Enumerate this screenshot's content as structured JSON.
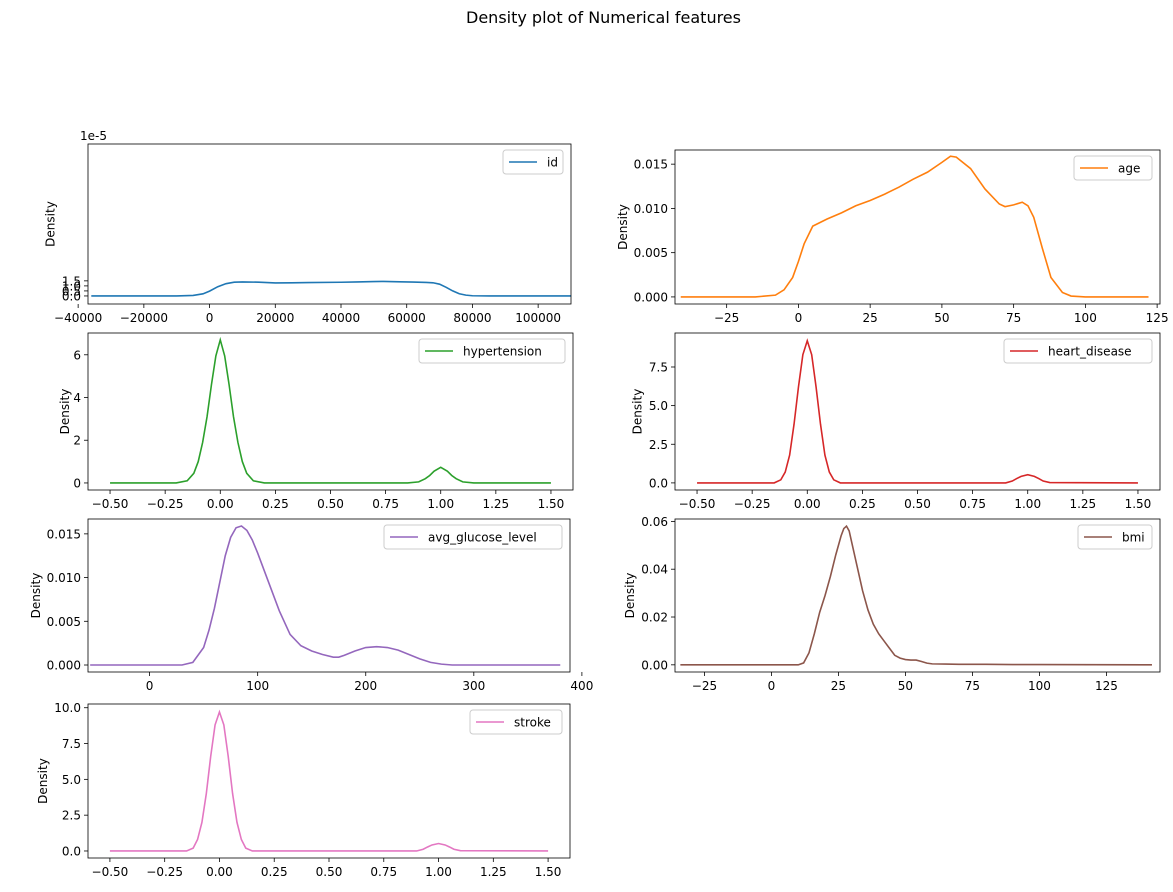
{
  "figure": {
    "title": "Density plot of Numerical features"
  },
  "chart_data": [
    {
      "type": "line",
      "name": "id",
      "color": "#1f77b4",
      "ylabel": "Density",
      "offset_label": "1e-5",
      "xlim": [
        -37000,
        110000
      ],
      "ylim": [
        -8e-06,
        0.000151
      ],
      "xticks": [
        -40000,
        -20000,
        0,
        20000,
        40000,
        60000,
        80000,
        100000
      ],
      "xtick_labels": [
        "−40000",
        "−20000",
        "0",
        "20000",
        "40000",
        "60000",
        "80000",
        "100000"
      ],
      "yticks": [
        0,
        5e-06,
        1e-05,
        1.5e-05
      ],
      "ytick_labels": [
        "0.0",
        "0.5",
        "1.0",
        "1.5"
      ],
      "series": [
        {
          "name": "id",
          "x": [
            -36000,
            -10000,
            -5000,
            -2000,
            0,
            2500,
            5000,
            7500,
            10000,
            15000,
            20000,
            25000,
            30000,
            40000,
            45000,
            50000,
            53000,
            58000,
            62000,
            66000,
            68000,
            70000,
            72000,
            74000,
            76000,
            78000,
            80000,
            85000,
            110000
          ],
          "y": [
            0,
            0,
            5e-07,
            2.1e-06,
            4.8e-06,
            9.2e-06,
            1.22e-05,
            1.37e-05,
            1.39e-05,
            1.37e-05,
            1.29e-05,
            1.31e-05,
            1.33e-05,
            1.36e-05,
            1.39e-05,
            1.43e-05,
            1.44e-05,
            1.4e-05,
            1.38e-05,
            1.34e-05,
            1.31e-05,
            1.17e-05,
            8.6e-06,
            5e-06,
            2.2e-06,
            8e-07,
            2e-07,
            0,
            0
          ]
        }
      ]
    },
    {
      "type": "line",
      "name": "age",
      "color": "#ff7f0e",
      "ylabel": "Density",
      "offset_label": "",
      "xlim": [
        -43,
        126
      ],
      "ylim": [
        -0.0008,
        0.0166
      ],
      "xticks": [
        -25,
        0,
        25,
        50,
        75,
        100,
        125
      ],
      "xtick_labels": [
        "−25",
        "0",
        "25",
        "50",
        "75",
        "100",
        "125"
      ],
      "yticks": [
        0,
        0.005,
        0.01,
        0.015
      ],
      "ytick_labels": [
        "0.000",
        "0.005",
        "0.010",
        "0.015"
      ],
      "series": [
        {
          "name": "age",
          "x": [
            -41,
            -15,
            -8,
            -5,
            -2,
            0,
            2,
            5,
            10,
            15,
            20,
            25,
            30,
            35,
            40,
            45,
            50,
            53,
            55,
            60,
            65,
            70,
            72,
            75,
            78,
            80,
            82,
            85,
            88,
            92,
            95,
            100,
            122
          ],
          "y": [
            0,
            0,
            0.0002,
            0.0008,
            0.0022,
            0.004,
            0.006,
            0.008,
            0.0088,
            0.0095,
            0.0103,
            0.0109,
            0.0116,
            0.0124,
            0.0133,
            0.0141,
            0.0152,
            0.0159,
            0.0158,
            0.0145,
            0.0122,
            0.0105,
            0.0102,
            0.0104,
            0.0107,
            0.0103,
            0.009,
            0.0055,
            0.0022,
            0.0005,
            0.0001,
            0,
            0
          ]
        }
      ]
    },
    {
      "type": "line",
      "name": "hypertension",
      "color": "#2ca02c",
      "ylabel": "Density",
      "offset_label": "",
      "xlim": [
        -0.6,
        1.6
      ],
      "ylim": [
        -0.33,
        7.02
      ],
      "xticks": [
        -0.5,
        -0.25,
        0,
        0.25,
        0.5,
        0.75,
        1,
        1.25,
        1.5
      ],
      "xtick_labels": [
        "−0.50",
        "−0.25",
        "0.00",
        "0.25",
        "0.50",
        "0.75",
        "1.00",
        "1.25",
        "1.50"
      ],
      "yticks": [
        0,
        2,
        4,
        6
      ],
      "ytick_labels": [
        "0",
        "2",
        "4",
        "6"
      ],
      "series": [
        {
          "name": "hypertension",
          "x": [
            -0.5,
            -0.2,
            -0.15,
            -0.12,
            -0.1,
            -0.08,
            -0.06,
            -0.04,
            -0.02,
            0,
            0.02,
            0.04,
            0.06,
            0.08,
            0.1,
            0.12,
            0.15,
            0.2,
            0.85,
            0.9,
            0.93,
            0.95,
            0.97,
            1,
            1.03,
            1.05,
            1.07,
            1.1,
            1.15,
            1.5
          ],
          "y": [
            0,
            0,
            0.1,
            0.45,
            1.0,
            1.9,
            3.1,
            4.6,
            5.95,
            6.7,
            5.95,
            4.6,
            3.1,
            1.9,
            1.0,
            0.45,
            0.1,
            0,
            0,
            0.05,
            0.2,
            0.35,
            0.55,
            0.73,
            0.55,
            0.35,
            0.2,
            0.05,
            0,
            0
          ]
        }
      ]
    },
    {
      "type": "line",
      "name": "heart_disease",
      "color": "#d62728",
      "ylabel": "Density",
      "offset_label": "",
      "xlim": [
        -0.6,
        1.6
      ],
      "ylim": [
        -0.46,
        9.7
      ],
      "xticks": [
        -0.5,
        -0.25,
        0,
        0.25,
        0.5,
        0.75,
        1,
        1.25,
        1.5
      ],
      "xtick_labels": [
        "−0.50",
        "−0.25",
        "0.00",
        "0.25",
        "0.50",
        "0.75",
        "1.00",
        "1.25",
        "1.50"
      ],
      "yticks": [
        0,
        2.5,
        5,
        7.5
      ],
      "ytick_labels": [
        "0.0",
        "2.5",
        "5.0",
        "7.5"
      ],
      "series": [
        {
          "name": "heart_disease",
          "x": [
            -0.5,
            -0.15,
            -0.12,
            -0.1,
            -0.08,
            -0.06,
            -0.04,
            -0.02,
            0,
            0.02,
            0.04,
            0.06,
            0.08,
            0.1,
            0.12,
            0.15,
            0.9,
            0.93,
            0.95,
            0.97,
            1,
            1.03,
            1.05,
            1.07,
            1.1,
            1.5
          ],
          "y": [
            0,
            0,
            0.2,
            0.7,
            1.8,
            3.8,
            6.2,
            8.3,
            9.2,
            8.3,
            6.2,
            3.8,
            1.8,
            0.7,
            0.2,
            0,
            0,
            0.12,
            0.28,
            0.42,
            0.53,
            0.42,
            0.28,
            0.12,
            0.02,
            0
          ]
        }
      ]
    },
    {
      "type": "line",
      "name": "avg_glucose_level",
      "color": "#9467bd",
      "ylabel": "Density",
      "offset_label": "",
      "xlim": [
        -57,
        389
      ],
      "ylim": [
        -0.0008,
        0.0167
      ],
      "xticks": [
        0,
        100,
        200,
        300,
        400
      ],
      "xtick_labels": [
        "0",
        "100",
        "200",
        "300",
        "400"
      ],
      "yticks": [
        0,
        0.005,
        0.01,
        0.015
      ],
      "ytick_labels": [
        "0.000",
        "0.005",
        "0.010",
        "0.015"
      ],
      "series": [
        {
          "name": "avg_glucose_level",
          "x": [
            -55,
            30,
            40,
            50,
            55,
            60,
            65,
            70,
            75,
            80,
            85,
            90,
            95,
            100,
            110,
            120,
            130,
            140,
            150,
            160,
            170,
            175,
            180,
            190,
            200,
            210,
            220,
            230,
            240,
            250,
            260,
            270,
            280,
            300,
            380
          ],
          "y": [
            0,
            0,
            0.0003,
            0.002,
            0.004,
            0.0065,
            0.0095,
            0.0125,
            0.0146,
            0.0157,
            0.0159,
            0.0154,
            0.0143,
            0.0128,
            0.0095,
            0.0062,
            0.0035,
            0.0022,
            0.0016,
            0.0012,
            0.0009,
            0.0009,
            0.0011,
            0.0016,
            0.002,
            0.0021,
            0.002,
            0.0017,
            0.0012,
            0.0007,
            0.0003,
            0.0001,
            0,
            0,
            0
          ]
        }
      ]
    },
    {
      "type": "line",
      "name": "bmi",
      "color": "#8c564b",
      "ylabel": "Density",
      "offset_label": "",
      "xlim": [
        -36,
        145
      ],
      "ylim": [
        -0.003,
        0.061
      ],
      "xticks": [
        -25,
        0,
        25,
        50,
        75,
        100,
        125
      ],
      "xtick_labels": [
        "−25",
        "0",
        "25",
        "50",
        "75",
        "100",
        "125"
      ],
      "yticks": [
        0,
        0.02,
        0.04,
        0.06
      ],
      "ytick_labels": [
        "0.00",
        "0.02",
        "0.04",
        "0.06"
      ],
      "series": [
        {
          "name": "bmi",
          "x": [
            -34,
            10,
            12,
            14,
            16,
            18,
            20,
            22,
            24,
            26,
            27,
            28,
            29,
            30,
            32,
            34,
            36,
            38,
            40,
            42,
            44,
            46,
            48,
            50,
            52,
            54,
            56,
            58,
            60,
            65,
            70,
            80,
            90,
            100,
            142
          ],
          "y": [
            0,
            0,
            0.0008,
            0.005,
            0.013,
            0.022,
            0.029,
            0.037,
            0.046,
            0.054,
            0.057,
            0.058,
            0.056,
            0.051,
            0.041,
            0.031,
            0.023,
            0.017,
            0.013,
            0.01,
            0.007,
            0.004,
            0.0028,
            0.0022,
            0.002,
            0.002,
            0.0014,
            0.0007,
            0.0004,
            0.0003,
            0.0002,
            0.0002,
            0.0001,
            0.0001,
            0
          ]
        }
      ]
    },
    {
      "type": "line",
      "name": "stroke",
      "color": "#e377c2",
      "ylabel": "Density",
      "offset_label": "",
      "xlim": [
        -0.6,
        1.6
      ],
      "ylim": [
        -0.49,
        10.26
      ],
      "xticks": [
        -0.5,
        -0.25,
        0,
        0.25,
        0.5,
        0.75,
        1,
        1.25,
        1.5
      ],
      "xtick_labels": [
        "−0.50",
        "−0.25",
        "0.00",
        "0.25",
        "0.50",
        "0.75",
        "1.00",
        "1.25",
        "1.50"
      ],
      "yticks": [
        0,
        2.5,
        5,
        7.5,
        10
      ],
      "ytick_labels": [
        "0.0",
        "2.5",
        "5.0",
        "7.5",
        "10.0"
      ],
      "series": [
        {
          "name": "stroke",
          "x": [
            -0.5,
            -0.15,
            -0.12,
            -0.1,
            -0.08,
            -0.06,
            -0.04,
            -0.02,
            0,
            0.02,
            0.04,
            0.06,
            0.08,
            0.1,
            0.12,
            0.15,
            0.9,
            0.93,
            0.95,
            0.97,
            1,
            1.03,
            1.05,
            1.07,
            1.1,
            1.5
          ],
          "y": [
            0,
            0,
            0.2,
            0.8,
            2.0,
            4.0,
            6.6,
            8.8,
            9.7,
            8.8,
            6.6,
            4.0,
            2.0,
            0.8,
            0.2,
            0,
            0,
            0.12,
            0.28,
            0.42,
            0.52,
            0.42,
            0.28,
            0.12,
            0.02,
            0
          ]
        }
      ]
    }
  ]
}
